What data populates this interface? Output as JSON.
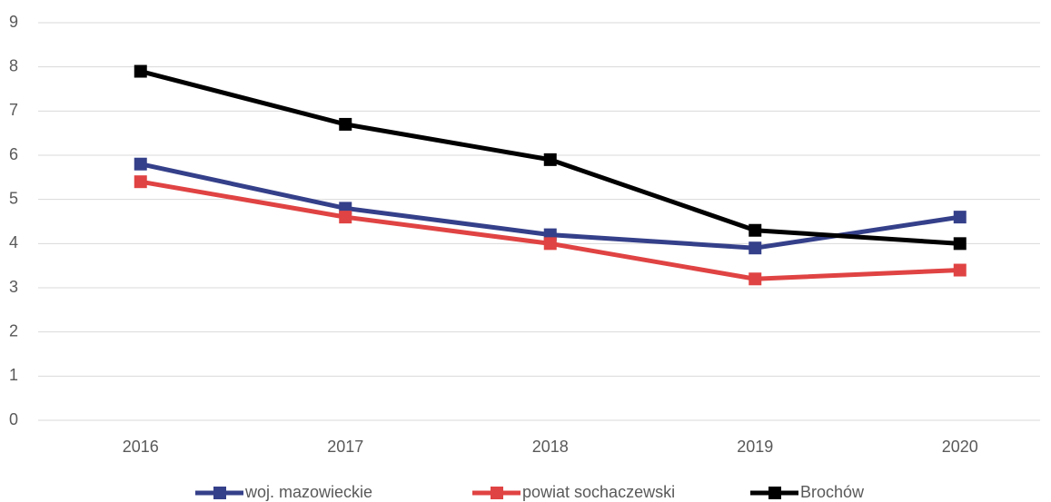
{
  "chart_data": {
    "type": "line",
    "categories": [
      "2016",
      "2017",
      "2018",
      "2019",
      "2020"
    ],
    "series": [
      {
        "name": "woj. mazowieckie",
        "color": "#35408a",
        "values": [
          5.8,
          4.8,
          4.2,
          3.9,
          4.6
        ]
      },
      {
        "name": "powiat sochaczewski",
        "color": "#e04343",
        "values": [
          5.4,
          4.6,
          4.0,
          3.2,
          3.4
        ]
      },
      {
        "name": "Brochów",
        "color": "#000000",
        "values": [
          7.9,
          6.7,
          5.9,
          4.3,
          4.0
        ]
      }
    ],
    "ylim": [
      0,
      9
    ],
    "yticks": [
      0,
      1,
      2,
      3,
      4,
      5,
      6,
      7,
      8,
      9
    ],
    "grid": true,
    "legend": "bottom"
  }
}
